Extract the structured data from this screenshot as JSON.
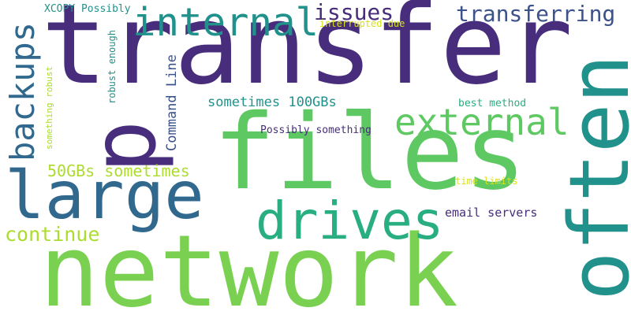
{
  "palette": {
    "background": "#ffffff",
    "deep_purple": "#472d7b",
    "indigo": "#3b528b",
    "blue": "#31688e",
    "teal": "#21918c",
    "green_teal": "#28ae80",
    "green": "#5ec962",
    "light_green": "#7ad151",
    "yellow_green": "#addc30",
    "yellow": "#d8e219"
  },
  "words": {
    "transfer": "transfer",
    "p": "p",
    "files": "files",
    "network": "network",
    "often": "often",
    "large": "large",
    "drives": "drives",
    "external": "external",
    "internal": "internal",
    "backups": "backups",
    "issues": "issues",
    "transferring": "transferring",
    "continue": "continue",
    "gb50": "50GBs sometimes",
    "gb100": "sometimes 100GBs",
    "command_line": "Command Line",
    "xcopy": "XCOPY Possibly",
    "interrupted": "interrupted due",
    "robust_enough": "robust enough",
    "something_robust": "something robust",
    "best_method": "best method",
    "possibly_something": "Possibly something",
    "time_limits": "time limits",
    "email_servers": "email servers"
  }
}
